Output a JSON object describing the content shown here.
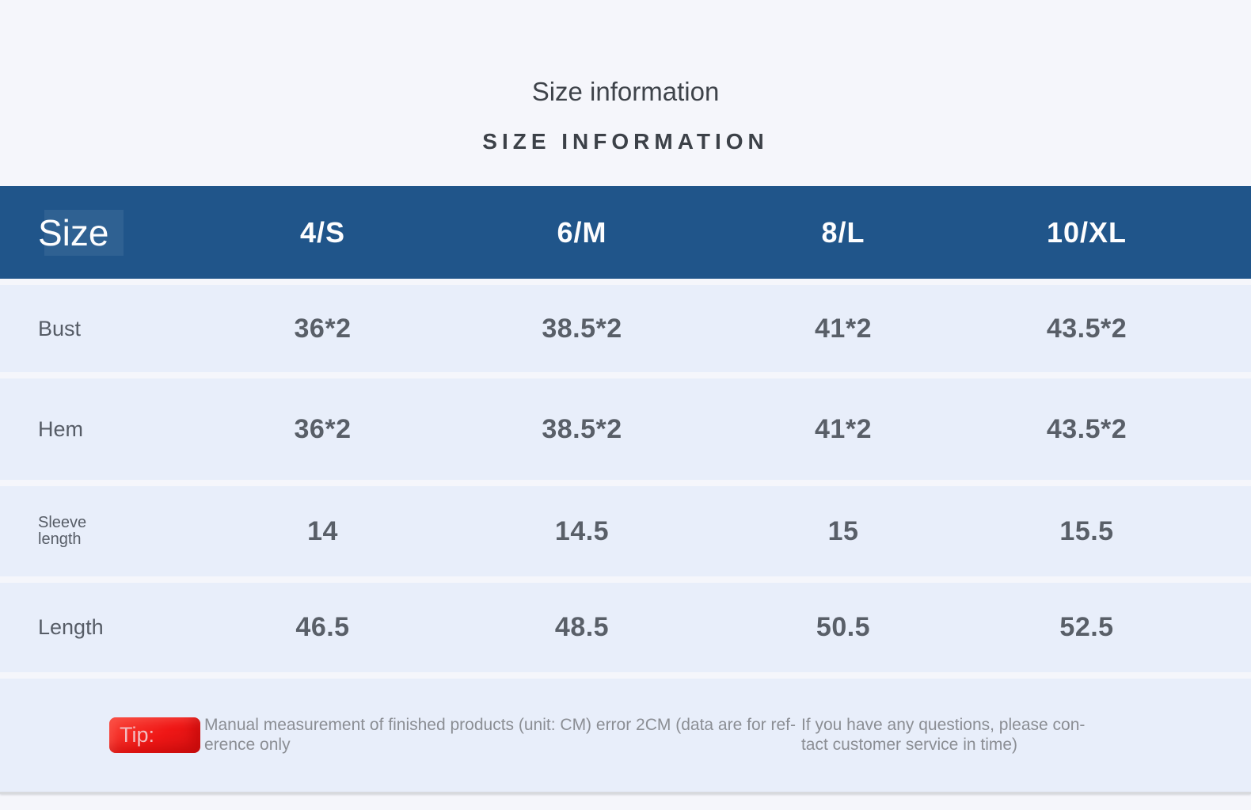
{
  "header": {
    "title": "Size information",
    "subtitle": "SIZE INFORMATION"
  },
  "chart_data": {
    "type": "table",
    "title": "Size information",
    "corner_label": "Size",
    "columns": [
      "4/S",
      "6/M",
      "8/L",
      "10/XL"
    ],
    "rows": [
      {
        "label": "Bust",
        "values": [
          "36*2",
          "38.5*2",
          "41*2",
          "43.5*2"
        ]
      },
      {
        "label": "Hem",
        "values": [
          "36*2",
          "38.5*2",
          "41*2",
          "43.5*2"
        ]
      },
      {
        "label": "Sleeve length",
        "values": [
          "14",
          "14.5",
          "15",
          "15.5"
        ]
      },
      {
        "label": "Length",
        "values": [
          "46.5",
          "48.5",
          "50.5",
          "52.5"
        ]
      }
    ]
  },
  "sleeve_label_lines": [
    "Sleeve",
    "length"
  ],
  "footer": {
    "tip_label": "Tip:",
    "note_left_lines": [
      "Manual measurement of finished products (unit: CM) error 2CM (data are for ref-",
      "erence only"
    ],
    "note_right_lines": [
      "If you have any questions, please con-",
      "tact customer service in time)"
    ]
  },
  "colors": {
    "header_bg": "#20558a",
    "row_bg": "#e8eefa",
    "page_bg": "#f5f6fb",
    "tip_red": "#ee1c1c",
    "value_text": "#595f68",
    "label_text": "#565c66",
    "note_text": "#8b8e94",
    "title_text": "#3e434a"
  }
}
